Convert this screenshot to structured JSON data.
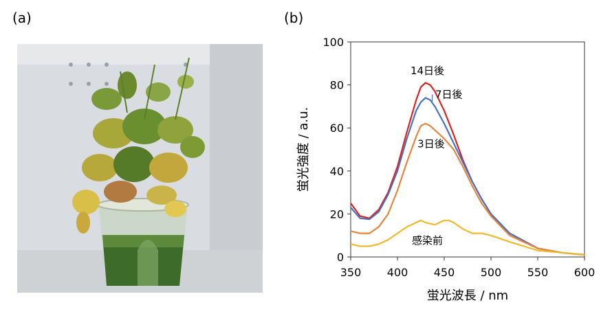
{
  "panels": {
    "a_label": "(a)",
    "b_label": "(b)"
  },
  "chart_data": {
    "type": "line",
    "title": "",
    "xlabel": "蛍光波長 / nm",
    "ylabel": "蛍光強度 / a.u.",
    "xlim": [
      350,
      600
    ],
    "ylim": [
      0,
      100
    ],
    "xticks": [
      350,
      400,
      450,
      500,
      550,
      600
    ],
    "yticks": [
      0,
      20,
      40,
      60,
      80,
      100
    ],
    "grid": false,
    "legend": "inline labels",
    "series": [
      {
        "name": "14日後",
        "color": "#e02020",
        "x": [
          350,
          360,
          370,
          380,
          390,
          400,
          410,
          420,
          425,
          430,
          435,
          440,
          450,
          460,
          470,
          480,
          490,
          500,
          520,
          550,
          575,
          600
        ],
        "y": [
          25,
          19,
          18,
          22,
          30,
          42,
          58,
          73,
          79,
          81,
          80,
          77,
          68,
          57,
          45,
          35,
          27,
          20,
          11,
          4,
          2,
          1
        ]
      },
      {
        "name": "7日後",
        "color": "#4472c4",
        "x": [
          350,
          360,
          370,
          380,
          390,
          400,
          410,
          420,
          425,
          430,
          435,
          440,
          450,
          460,
          470,
          480,
          490,
          500,
          520,
          550,
          575,
          600
        ],
        "y": [
          23,
          18,
          17.5,
          21,
          29,
          40,
          55,
          68,
          72,
          74,
          73,
          70,
          62,
          53,
          44,
          35,
          27,
          20,
          11,
          4,
          2,
          1
        ]
      },
      {
        "name": "3日後",
        "color": "#e8833a",
        "x": [
          350,
          360,
          370,
          380,
          390,
          400,
          410,
          420,
          425,
          430,
          435,
          440,
          450,
          460,
          470,
          480,
          490,
          500,
          520,
          550,
          575,
          600
        ],
        "y": [
          12,
          11,
          11,
          14,
          20,
          31,
          44,
          56,
          61,
          62,
          61,
          59,
          55,
          50,
          42,
          33,
          25,
          19,
          10,
          4,
          2,
          1
        ]
      },
      {
        "name": "感染前",
        "color": "#f2b82a",
        "x": [
          350,
          360,
          370,
          380,
          390,
          400,
          410,
          420,
          425,
          430,
          440,
          450,
          455,
          460,
          470,
          480,
          490,
          500,
          520,
          550,
          575,
          600
        ],
        "y": [
          6,
          5,
          5,
          6,
          8,
          11,
          14,
          16,
          17,
          16,
          15,
          17,
          17,
          16,
          13,
          11,
          11,
          10,
          7,
          3,
          2,
          1
        ]
      }
    ],
    "annotations": [
      {
        "text": "14日後",
        "x": 432,
        "y": 85
      },
      {
        "text": "7日後",
        "x": 455,
        "y": 74,
        "arrow_to": [
          437,
          72
        ]
      },
      {
        "text": "3日後",
        "x": 436,
        "y": 51
      },
      {
        "text": "感染前",
        "x": 432,
        "y": 6
      }
    ]
  }
}
